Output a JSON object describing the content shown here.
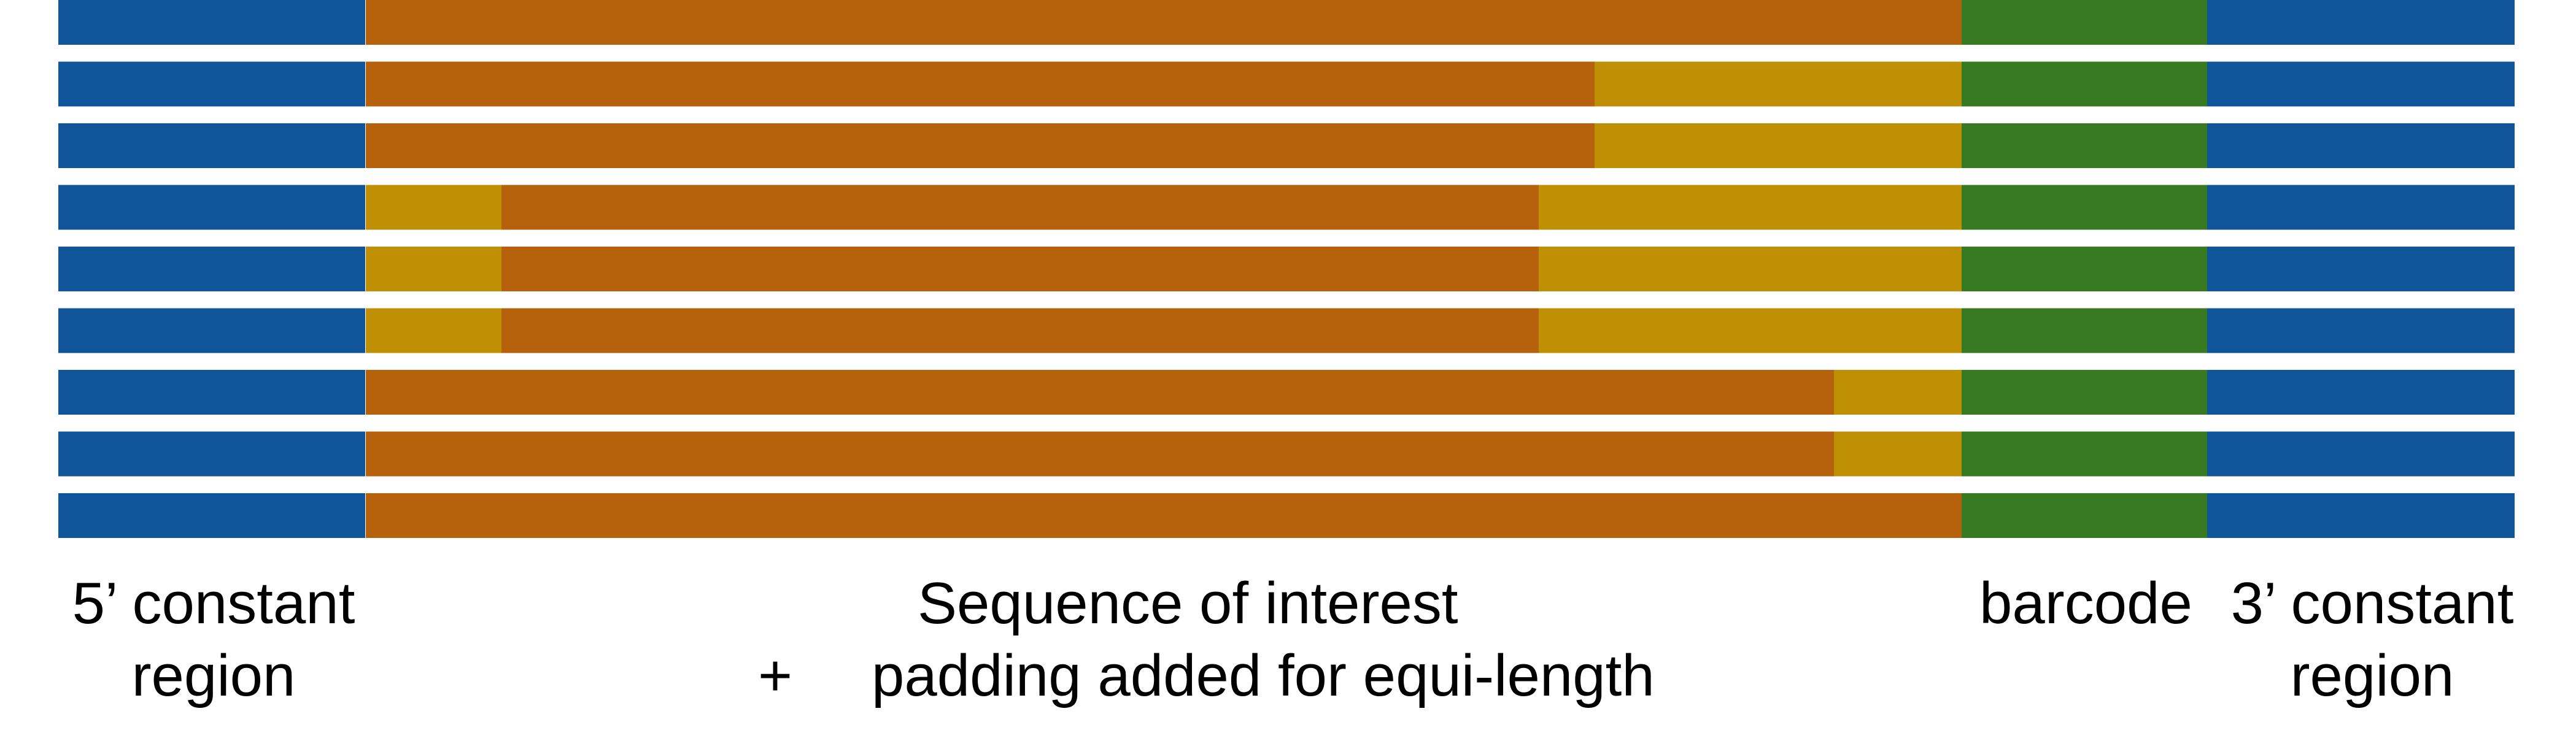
{
  "colors": {
    "constant_region": "#10559A",
    "sequence_of_interest": "#B6610C",
    "padding": "#C09004",
    "barcode": "#387A22",
    "background": "#FFFFFF"
  },
  "labels": {
    "five_prime_line1": "5’ constant",
    "five_prime_line2": "region",
    "sequence_line1": "Sequence of interest",
    "plus": "+",
    "sequence_line2": "padding added for equi-length",
    "barcode": "barcode",
    "three_prime_line1": "3’ constant",
    "three_prime_line2": "region"
  },
  "constructs": [
    {
      "segments": [
        {
          "type": "sequence_of_interest",
          "fraction": 1.0
        }
      ]
    },
    {
      "segments": [
        {
          "type": "sequence_of_interest",
          "fraction": 0.77
        },
        {
          "type": "padding",
          "fraction": 0.23
        }
      ]
    },
    {
      "segments": [
        {
          "type": "sequence_of_interest",
          "fraction": 0.77
        },
        {
          "type": "padding",
          "fraction": 0.23
        }
      ]
    },
    {
      "segments": [
        {
          "type": "padding",
          "fraction": 0.085
        },
        {
          "type": "sequence_of_interest",
          "fraction": 0.65
        },
        {
          "type": "padding",
          "fraction": 0.265
        }
      ]
    },
    {
      "segments": [
        {
          "type": "padding",
          "fraction": 0.085
        },
        {
          "type": "sequence_of_interest",
          "fraction": 0.65
        },
        {
          "type": "padding",
          "fraction": 0.265
        }
      ]
    },
    {
      "segments": [
        {
          "type": "padding",
          "fraction": 0.085
        },
        {
          "type": "sequence_of_interest",
          "fraction": 0.65
        },
        {
          "type": "padding",
          "fraction": 0.265
        }
      ]
    },
    {
      "segments": [
        {
          "type": "sequence_of_interest",
          "fraction": 0.92
        },
        {
          "type": "padding",
          "fraction": 0.08
        }
      ]
    },
    {
      "segments": [
        {
          "type": "sequence_of_interest",
          "fraction": 0.92
        },
        {
          "type": "padding",
          "fraction": 0.08
        }
      ]
    },
    {
      "segments": [
        {
          "type": "sequence_of_interest",
          "fraction": 1.0
        }
      ]
    }
  ]
}
